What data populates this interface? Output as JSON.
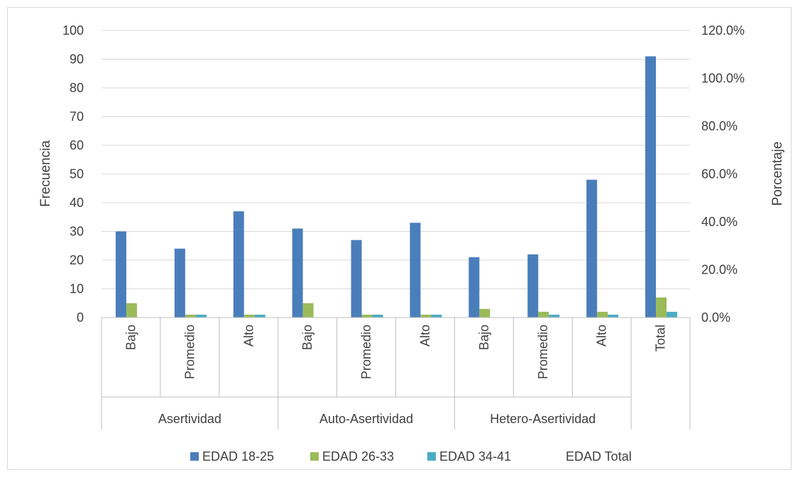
{
  "chart_data": {
    "type": "bar",
    "title": "",
    "ylabel": "Frecuencia",
    "y2label": "Porcentaje",
    "ylim": [
      0,
      100
    ],
    "yticks": [
      "0",
      "10",
      "20",
      "30",
      "40",
      "50",
      "60",
      "70",
      "80",
      "90",
      "100"
    ],
    "y2lim": [
      0,
      120
    ],
    "y2ticks": [
      "0.0%",
      "20.0%",
      "40.0%",
      "60.0%",
      "80.0%",
      "100.0%",
      "120.0%"
    ],
    "grid": true,
    "legend_position": "bottom",
    "categories": [
      {
        "group": "Asertividad",
        "level": "Bajo"
      },
      {
        "group": "Asertividad",
        "level": "Promedio"
      },
      {
        "group": "Asertividad",
        "level": "Alto"
      },
      {
        "group": "Auto-Asertividad",
        "level": "Bajo"
      },
      {
        "group": "Auto-Asertividad",
        "level": "Promedio"
      },
      {
        "group": "Auto-Asertividad",
        "level": "Alto"
      },
      {
        "group": "Hetero-Asertividad",
        "level": "Bajo"
      },
      {
        "group": "Hetero-Asertividad",
        "level": "Promedio"
      },
      {
        "group": "Hetero-Asertividad",
        "level": "Alto"
      },
      {
        "group": "",
        "level": "Total"
      }
    ],
    "groups": [
      "Asertividad",
      "Auto-Asertividad",
      "Hetero-Asertividad"
    ],
    "series": [
      {
        "name": "EDAD 18-25",
        "color": "#4a7ebb",
        "axis": "left",
        "values": [
          30,
          24,
          37,
          31,
          27,
          33,
          21,
          22,
          48,
          91
        ]
      },
      {
        "name": "EDAD 26-33",
        "color": "#9bbb59",
        "axis": "left",
        "values": [
          5,
          1,
          1,
          5,
          1,
          1,
          3,
          2,
          2,
          7
        ]
      },
      {
        "name": "EDAD 34-41",
        "color": "#4bacc6",
        "axis": "left",
        "values": [
          0,
          1,
          1,
          0,
          1,
          1,
          0,
          1,
          1,
          2
        ]
      },
      {
        "name": "EDAD Total",
        "color": "",
        "axis": "right",
        "values": [
          0,
          0,
          0,
          0,
          0,
          0,
          0,
          0,
          0,
          0
        ]
      }
    ]
  }
}
